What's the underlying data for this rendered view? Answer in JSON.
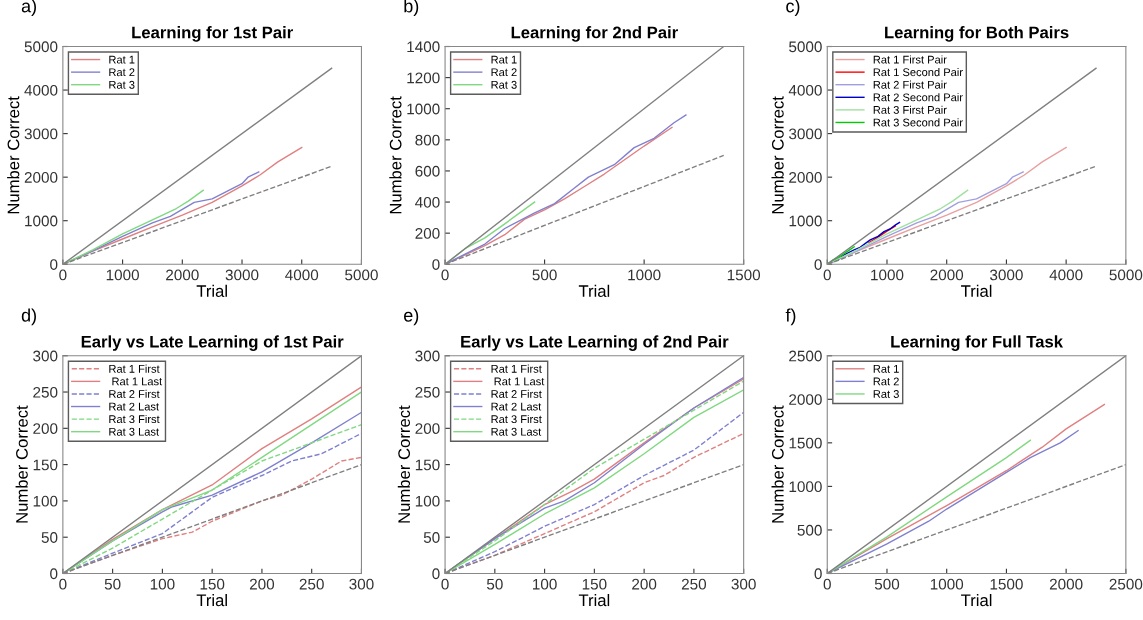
{
  "chart_data": [
    {
      "type": "line",
      "title": "Learning for 1st Pair",
      "xlabel": "Trial",
      "ylabel": "Number Correct",
      "annotations": [
        "a)"
      ],
      "xlim": [
        0,
        5000
      ],
      "ylim": [
        0,
        5000
      ],
      "xticks": [
        0,
        1000,
        2000,
        3000,
        4000,
        5000
      ],
      "yticks": [
        0,
        1000,
        2000,
        3000,
        4000,
        5000
      ],
      "grid": false,
      "legend": "top left",
      "series": [
        {
          "name": "Rat 1",
          "color": "#e08080",
          "x": [
            0,
            500,
            1000,
            1500,
            2000,
            2500,
            3000,
            3300,
            3600,
            4000
          ],
          "values": [
            0,
            300,
            580,
            860,
            1130,
            1420,
            1800,
            2050,
            2350,
            2680
          ]
        },
        {
          "name": "Rat 2",
          "color": "#8080d0",
          "x": [
            0,
            500,
            1000,
            1500,
            1800,
            2200,
            2500,
            3000,
            3100,
            3280
          ],
          "values": [
            0,
            310,
            640,
            950,
            1100,
            1420,
            1500,
            1850,
            2000,
            2120
          ]
        },
        {
          "name": "Rat 3",
          "color": "#80d880",
          "x": [
            0,
            500,
            1000,
            1500,
            1900,
            2100,
            2350
          ],
          "values": [
            0,
            330,
            700,
            1020,
            1280,
            1450,
            1700
          ]
        },
        {
          "color": "#808080",
          "x": [
            0,
            4500
          ],
          "values": [
            0,
            4500
          ]
        },
        {
          "color": "#808080",
          "line_style": "dashed",
          "x": [
            0,
            4500
          ],
          "values": [
            0,
            2250
          ]
        }
      ]
    },
    {
      "type": "line",
      "title": "Learning for 2nd Pair",
      "xlabel": "Trial",
      "ylabel": "Number Correct",
      "annotations": [
        "b)"
      ],
      "xlim": [
        0,
        1500
      ],
      "ylim": [
        0,
        1400
      ],
      "xticks": [
        0,
        500,
        1000,
        1500
      ],
      "yticks": [
        0,
        200,
        400,
        600,
        800,
        1000,
        1200,
        1400
      ],
      "grid": false,
      "legend": "top left",
      "series": [
        {
          "name": "Rat 1",
          "color": "#e08080",
          "x": [
            0,
            200,
            300,
            400,
            500,
            600,
            700,
            800,
            900,
            1000,
            1140
          ],
          "values": [
            0,
            120,
            190,
            290,
            350,
            420,
            500,
            580,
            670,
            760,
            880
          ]
        },
        {
          "name": "Rat 2",
          "color": "#8080d0",
          "x": [
            0,
            200,
            300,
            450,
            550,
            650,
            720,
            850,
            950,
            1050,
            1150,
            1210
          ],
          "values": [
            0,
            130,
            230,
            330,
            390,
            490,
            560,
            640,
            750,
            810,
            910,
            960
          ]
        },
        {
          "name": "Rat 3",
          "color": "#80d880",
          "x": [
            0,
            100,
            200,
            300,
            450
          ],
          "values": [
            0,
            100,
            170,
            260,
            400
          ]
        },
        {
          "color": "#808080",
          "x": [
            0,
            1400
          ],
          "values": [
            0,
            1400
          ]
        },
        {
          "color": "#808080",
          "line_style": "dashed",
          "x": [
            0,
            1400
          ],
          "values": [
            0,
            700
          ]
        }
      ]
    },
    {
      "type": "line",
      "title": "Learning for Both Pairs",
      "xlabel": "Trial",
      "ylabel": "Number Correct",
      "annotations": [
        "c)"
      ],
      "xlim": [
        0,
        5000
      ],
      "ylim": [
        0,
        5000
      ],
      "xticks": [
        0,
        1000,
        2000,
        3000,
        4000,
        5000
      ],
      "yticks": [
        0,
        1000,
        2000,
        3000,
        4000,
        5000
      ],
      "grid": false,
      "legend": "top left",
      "series": [
        {
          "name": "Rat 1 First Pair",
          "color": "#e8a0a0",
          "x": [
            0,
            500,
            1000,
            1500,
            2000,
            2500,
            3000,
            3300,
            3600,
            4000
          ],
          "values": [
            0,
            300,
            580,
            860,
            1130,
            1420,
            1800,
            2050,
            2350,
            2680
          ]
        },
        {
          "name": "Rat 1 Second Pair",
          "color": "#ff0000",
          "x": [
            700,
            800,
            900,
            1000,
            1140
          ],
          "values": [
            500,
            580,
            670,
            760,
            880
          ]
        },
        {
          "name": "Rat 2 First Pair",
          "color": "#a0a0e0",
          "x": [
            0,
            500,
            1000,
            1500,
            1800,
            2200,
            2500,
            3000,
            3100,
            3280
          ],
          "values": [
            0,
            310,
            640,
            950,
            1100,
            1420,
            1500,
            1850,
            2000,
            2120
          ]
        },
        {
          "name": "Rat 2 Second Pair",
          "color": "#0000c8",
          "x": [
            0,
            200,
            300,
            450,
            550,
            650,
            720,
            850,
            950,
            1050,
            1150,
            1210
          ],
          "values": [
            0,
            130,
            230,
            330,
            390,
            490,
            560,
            640,
            750,
            810,
            910,
            960
          ]
        },
        {
          "name": "Rat 3 First Pair",
          "color": "#a0e0a0",
          "x": [
            0,
            500,
            1000,
            1500,
            1900,
            2100,
            2350
          ],
          "values": [
            0,
            330,
            700,
            1020,
            1280,
            1450,
            1700
          ]
        },
        {
          "name": "Rat 3 Second Pair",
          "color": "#00cc00",
          "x": [
            0,
            100,
            200,
            300,
            450
          ],
          "values": [
            0,
            100,
            170,
            260,
            400
          ]
        },
        {
          "color": "#808080",
          "x": [
            0,
            4500
          ],
          "values": [
            0,
            4500
          ]
        },
        {
          "color": "#808080",
          "line_style": "dashed",
          "x": [
            0,
            4500
          ],
          "values": [
            0,
            2250
          ]
        }
      ]
    },
    {
      "type": "line",
      "title": "Early vs Late Learning of 1st Pair",
      "xlabel": "Trial",
      "ylabel": "Number Correct",
      "annotations": [
        "d)"
      ],
      "xlim": [
        0,
        300
      ],
      "ylim": [
        0,
        300
      ],
      "xticks": [
        0,
        50,
        100,
        150,
        200,
        250,
        300
      ],
      "yticks": [
        0,
        50,
        100,
        150,
        200,
        250,
        300
      ],
      "grid": false,
      "legend": "top left",
      "series": [
        {
          "name": "Rat 1 First",
          "color": "#e08080",
          "line_style": "dashed",
          "x": [
            0,
            50,
            100,
            130,
            150,
            200,
            220,
            250,
            280,
            300
          ],
          "values": [
            0,
            25,
            48,
            57,
            72,
            100,
            108,
            130,
            155,
            160
          ]
        },
        {
          "name": " Rat 1 Last",
          "color": "#e08080",
          "x": [
            0,
            50,
            100,
            150,
            200,
            250,
            300
          ],
          "values": [
            0,
            47,
            88,
            122,
            172,
            213,
            257
          ]
        },
        {
          "name": "Rat 2 First",
          "color": "#8080d0",
          "line_style": "dashed",
          "x": [
            0,
            50,
            100,
            150,
            200,
            230,
            260,
            300
          ],
          "values": [
            0,
            28,
            55,
            105,
            135,
            155,
            165,
            193
          ]
        },
        {
          "name": "Rat 2 Last",
          "color": "#8080d0",
          "x": [
            0,
            50,
            100,
            110,
            150,
            200,
            250,
            300
          ],
          "values": [
            0,
            45,
            85,
            92,
            108,
            140,
            180,
            222
          ]
        },
        {
          "name": "Rat 3 First",
          "color": "#80d880",
          "line_style": "dashed",
          "x": [
            0,
            50,
            100,
            150,
            200,
            250,
            300
          ],
          "values": [
            0,
            35,
            75,
            115,
            155,
            180,
            205
          ]
        },
        {
          "name": "Rat 3 Last",
          "color": "#80d880",
          "x": [
            0,
            50,
            100,
            150,
            200,
            250,
            300
          ],
          "values": [
            0,
            45,
            88,
            115,
            160,
            205,
            250
          ]
        },
        {
          "color": "#808080",
          "x": [
            0,
            300
          ],
          "values": [
            0,
            300
          ]
        },
        {
          "color": "#808080",
          "line_style": "dashed",
          "x": [
            0,
            300
          ],
          "values": [
            0,
            150
          ]
        }
      ]
    },
    {
      "type": "line",
      "title": "Early vs Late Learning of 2nd Pair",
      "xlabel": "Trial",
      "ylabel": "Number Correct",
      "annotations": [
        "e)"
      ],
      "xlim": [
        0,
        300
      ],
      "ylim": [
        0,
        300
      ],
      "xticks": [
        0,
        50,
        100,
        150,
        200,
        250,
        300
      ],
      "yticks": [
        0,
        50,
        100,
        150,
        200,
        250,
        300
      ],
      "grid": false,
      "legend": "top left",
      "series": [
        {
          "name": "Rat 1 First",
          "color": "#e08080",
          "line_style": "dashed",
          "x": [
            0,
            50,
            100,
            150,
            200,
            220,
            250,
            300
          ],
          "values": [
            0,
            25,
            55,
            85,
            125,
            135,
            160,
            193
          ]
        },
        {
          "name": " Rat 1 Last",
          "color": "#e08080",
          "x": [
            0,
            50,
            100,
            130,
            150,
            200,
            250,
            300
          ],
          "values": [
            0,
            48,
            95,
            115,
            130,
            180,
            228,
            268
          ]
        },
        {
          "name": "Rat 2 First",
          "color": "#8080d0",
          "line_style": "dashed",
          "x": [
            0,
            50,
            100,
            150,
            200,
            250,
            300
          ],
          "values": [
            0,
            30,
            65,
            95,
            135,
            170,
            222
          ]
        },
        {
          "name": "Rat 2 Last",
          "color": "#8080d0",
          "x": [
            0,
            50,
            100,
            120,
            150,
            200,
            250,
            300
          ],
          "values": [
            0,
            48,
            90,
            100,
            125,
            178,
            228,
            270
          ]
        },
        {
          "name": "Rat 3 First",
          "color": "#80d880",
          "line_style": "dashed",
          "x": [
            0,
            50,
            100,
            150,
            200,
            250,
            300
          ],
          "values": [
            0,
            45,
            95,
            145,
            185,
            225,
            265
          ]
        },
        {
          "name": "Rat 3 Last",
          "color": "#80d880",
          "x": [
            0,
            50,
            100,
            150,
            200,
            250,
            300
          ],
          "values": [
            0,
            40,
            82,
            118,
            165,
            215,
            253
          ]
        },
        {
          "color": "#808080",
          "x": [
            0,
            300
          ],
          "values": [
            0,
            300
          ]
        },
        {
          "color": "#808080",
          "line_style": "dashed",
          "x": [
            0,
            300
          ],
          "values": [
            0,
            150
          ]
        }
      ]
    },
    {
      "type": "line",
      "title": "Learning for Full Task",
      "xlabel": "Trial",
      "ylabel": "Number Correct",
      "annotations": [
        "f)"
      ],
      "xlim": [
        0,
        2500
      ],
      "ylim": [
        0,
        2500
      ],
      "xticks": [
        0,
        500,
        1000,
        1500,
        2000,
        2500
      ],
      "yticks": [
        0,
        500,
        1000,
        1500,
        2000,
        2500
      ],
      "grid": false,
      "legend": "top left",
      "series": [
        {
          "name": "Rat 1",
          "color": "#e08080",
          "x": [
            0,
            500,
            1000,
            1500,
            1800,
            2000,
            2320
          ],
          "values": [
            0,
            400,
            780,
            1180,
            1450,
            1660,
            1940
          ]
        },
        {
          "name": "Rat 2",
          "color": "#8080d0",
          "x": [
            0,
            500,
            850,
            1000,
            1500,
            1700,
            1950,
            2100
          ],
          "values": [
            0,
            340,
            600,
            740,
            1160,
            1330,
            1500,
            1640
          ]
        },
        {
          "name": "Rat 3",
          "color": "#80d880",
          "x": [
            0,
            500,
            1000,
            1500,
            1700
          ],
          "values": [
            0,
            420,
            880,
            1330,
            1530
          ]
        },
        {
          "color": "#808080",
          "x": [
            0,
            2500
          ],
          "values": [
            0,
            2500
          ]
        },
        {
          "color": "#808080",
          "line_style": "dashed",
          "x": [
            0,
            2500
          ],
          "values": [
            0,
            1250
          ]
        }
      ]
    }
  ]
}
